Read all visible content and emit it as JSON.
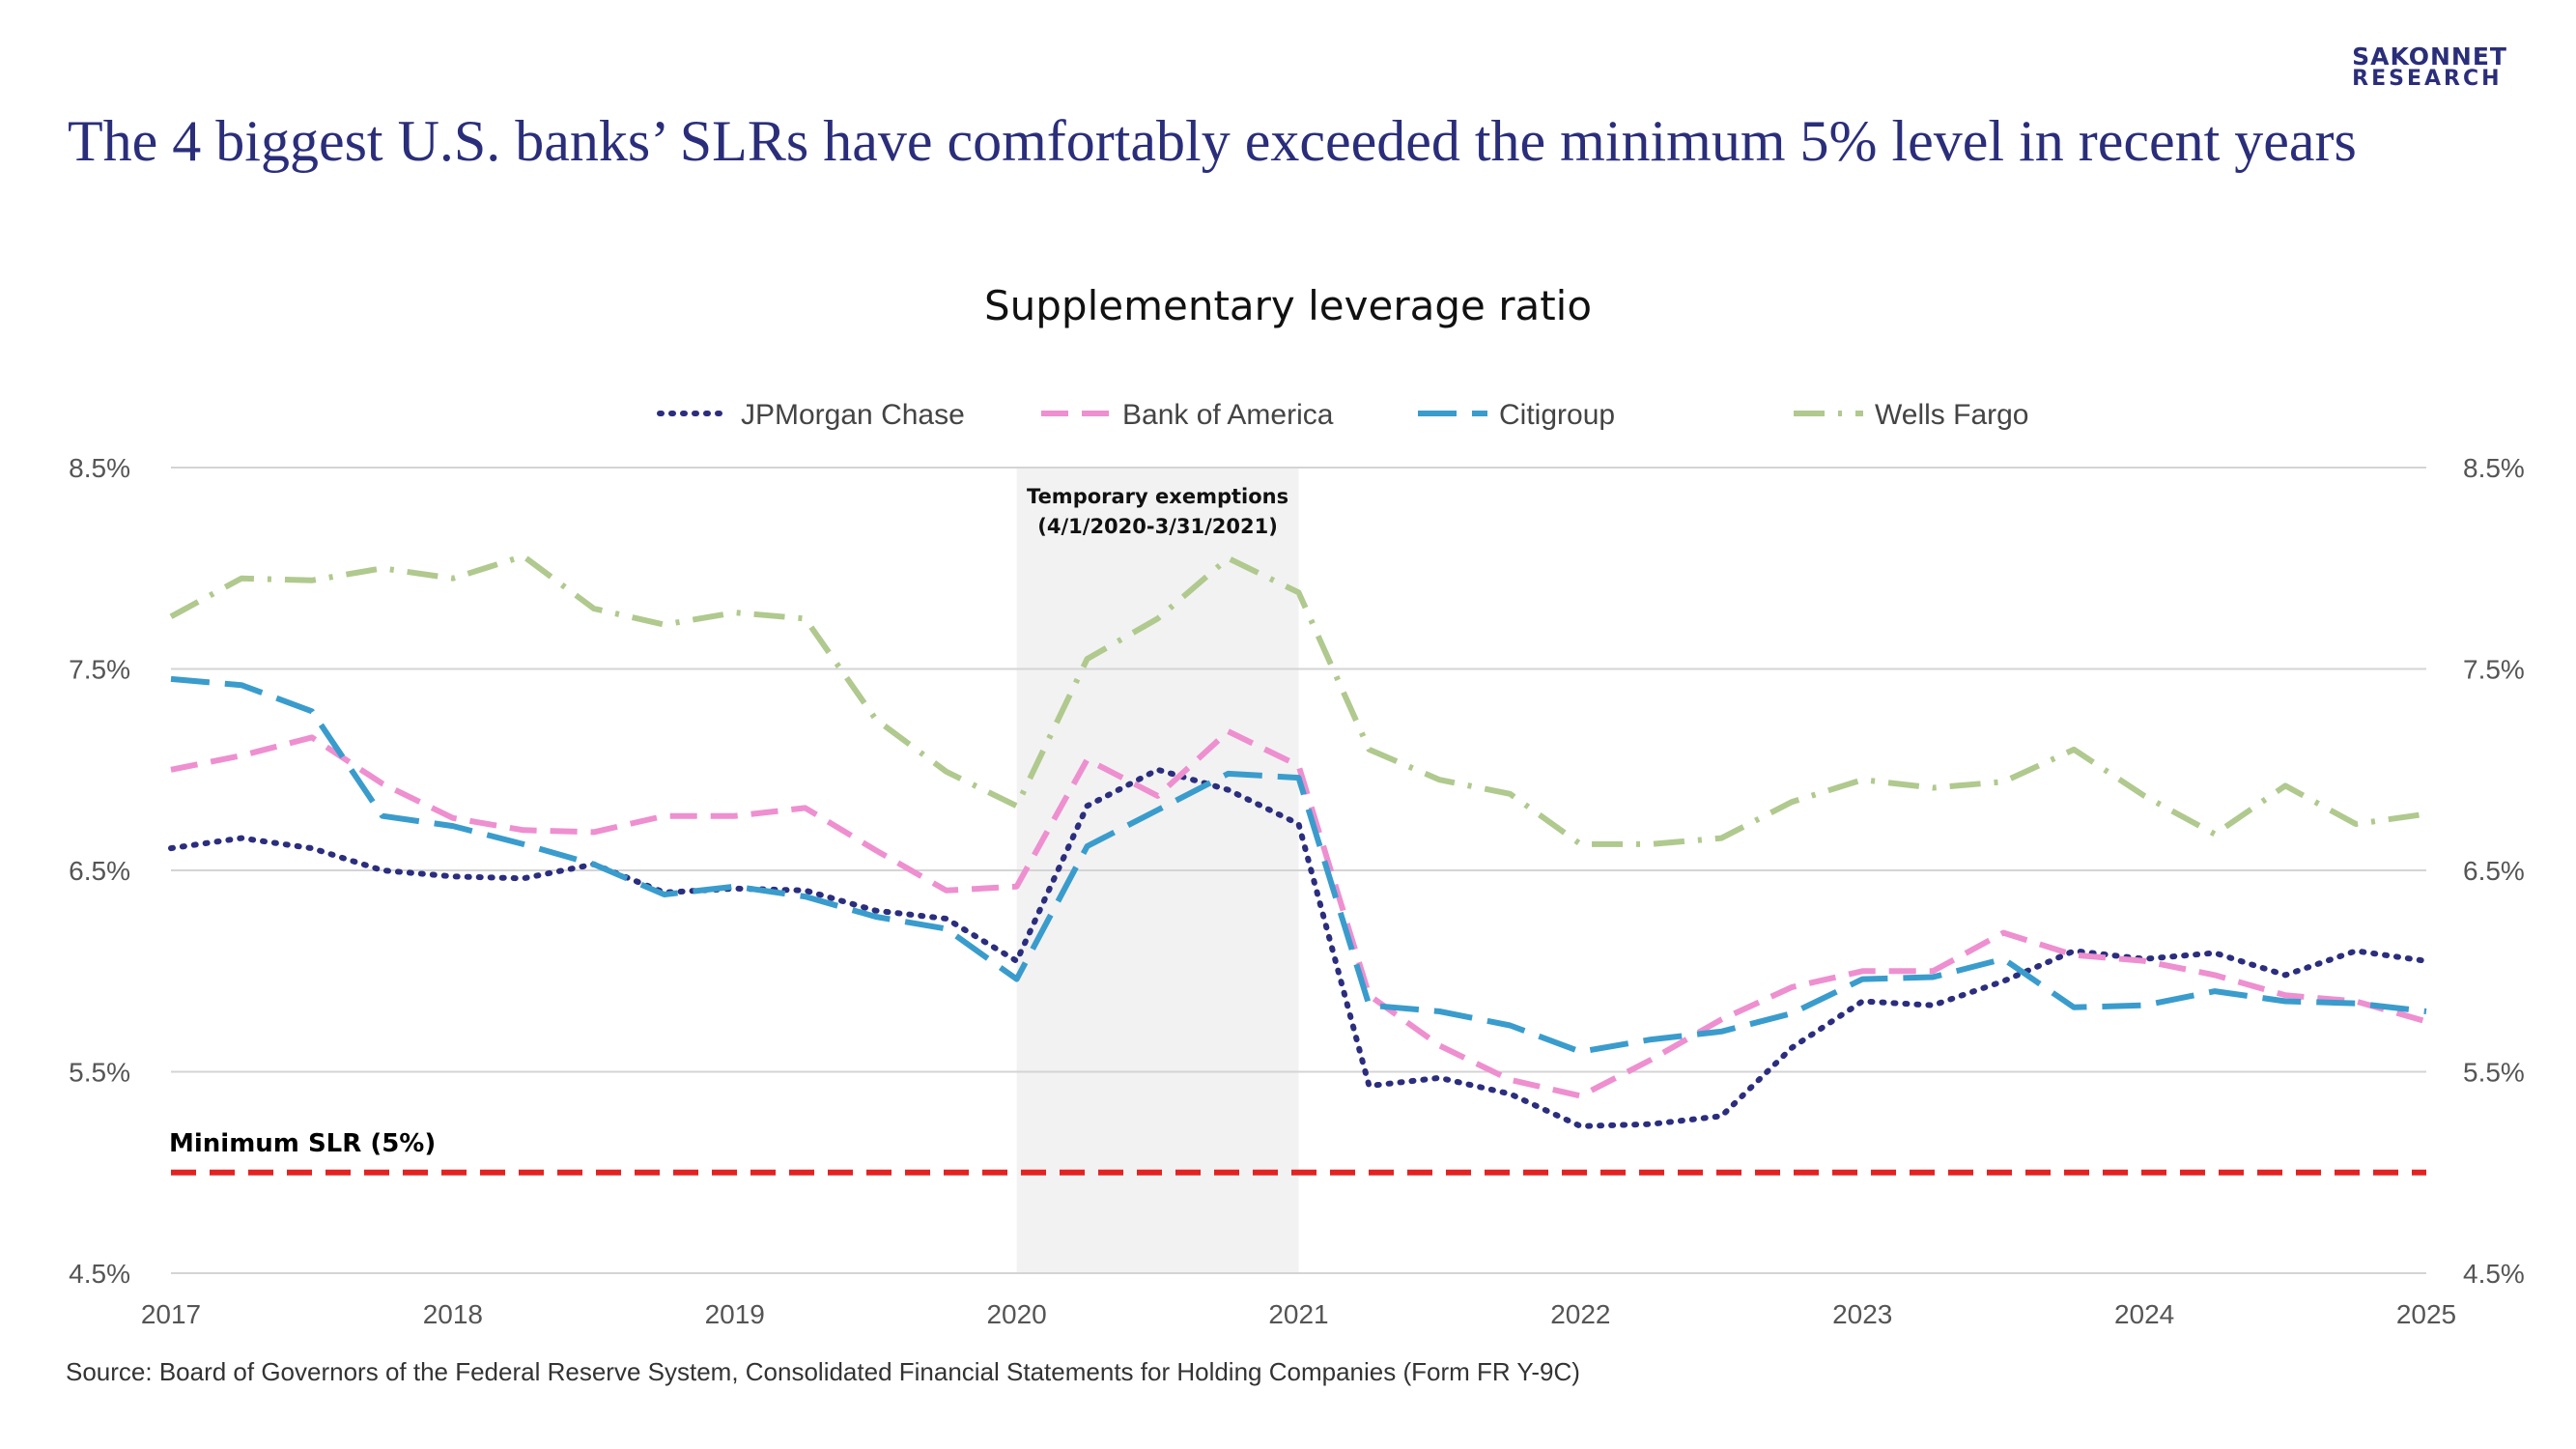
{
  "logo": {
    "line1": "SAKONNET",
    "line2": "RESEARCH"
  },
  "headline": "The 4 biggest U.S. banks’ SLRs have comfortably exceeded the minimum 5% level in recent years",
  "source": "Source: Board of Governors of the Federal Reserve System, Consolidated Financial Statements for Holding Companies (Form FR Y-9C)",
  "chart_data": {
    "type": "line",
    "title": "Supplementary leverage ratio",
    "xlabel": "",
    "ylabel": "",
    "xlim": [
      2017,
      2025
    ],
    "ylim": [
      4.5,
      8.5
    ],
    "y_ticks": [
      {
        "value": 8.5,
        "label": "8.5%"
      },
      {
        "value": 7.5,
        "label": "7.5%"
      },
      {
        "value": 6.5,
        "label": "6.5%"
      },
      {
        "value": 5.5,
        "label": "5.5%"
      },
      {
        "value": 4.5,
        "label": "4.5%"
      }
    ],
    "x_ticks": [
      {
        "value": 2017,
        "label": "2017"
      },
      {
        "value": 2018,
        "label": "2018"
      },
      {
        "value": 2019,
        "label": "2019"
      },
      {
        "value": 2020,
        "label": "2020"
      },
      {
        "value": 2021,
        "label": "2021"
      },
      {
        "value": 2022,
        "label": "2022"
      },
      {
        "value": 2023,
        "label": "2023"
      },
      {
        "value": 2024,
        "label": "2024"
      },
      {
        "value": 2025,
        "label": "2025"
      }
    ],
    "grid": "horizontal",
    "legend_position": "top",
    "x": [
      2017.0,
      2017.25,
      2017.5,
      2017.75,
      2018.0,
      2018.25,
      2018.5,
      2018.75,
      2019.0,
      2019.25,
      2019.5,
      2019.75,
      2020.0,
      2020.25,
      2020.5,
      2020.75,
      2021.0,
      2021.25,
      2021.5,
      2021.75,
      2022.0,
      2022.25,
      2022.5,
      2022.75,
      2023.0,
      2023.25,
      2023.5,
      2023.75,
      2024.0,
      2024.25,
      2024.5,
      2024.75,
      2025.0
    ],
    "series": [
      {
        "name": "JPMorgan Chase",
        "color": "#2b2e7d",
        "dash": "dotted",
        "values": [
          6.61,
          6.66,
          6.61,
          6.5,
          6.47,
          6.46,
          6.53,
          6.39,
          6.41,
          6.4,
          6.3,
          6.26,
          6.05,
          6.82,
          7.0,
          6.9,
          6.73,
          5.43,
          5.47,
          5.39,
          5.23,
          5.24,
          5.28,
          5.62,
          5.85,
          5.83,
          5.95,
          6.1,
          6.06,
          6.09,
          5.98,
          6.1,
          6.05
        ]
      },
      {
        "name": "Bank of America",
        "color": "#ee8fd0",
        "dash": "dashed",
        "values": [
          7.0,
          7.07,
          7.16,
          6.93,
          6.76,
          6.7,
          6.69,
          6.77,
          6.77,
          6.81,
          6.6,
          6.4,
          6.42,
          7.05,
          6.87,
          7.19,
          7.02,
          5.88,
          5.63,
          5.46,
          5.38,
          5.56,
          5.76,
          5.92,
          6.0,
          6.0,
          6.19,
          6.08,
          6.05,
          5.98,
          5.88,
          5.85,
          5.75
        ]
      },
      {
        "name": "Citigroup",
        "color": "#3a9ccc",
        "dash": "longdash",
        "values": [
          7.45,
          7.42,
          7.29,
          6.77,
          6.72,
          6.63,
          6.53,
          6.38,
          6.42,
          6.37,
          6.27,
          6.21,
          5.96,
          6.62,
          6.8,
          6.98,
          6.96,
          5.83,
          5.8,
          5.73,
          5.6,
          5.66,
          5.7,
          5.79,
          5.96,
          5.97,
          6.06,
          5.82,
          5.83,
          5.9,
          5.85,
          5.84,
          5.8
        ]
      },
      {
        "name": "Wells Fargo",
        "color": "#b0c98e",
        "dash": "dashdot",
        "values": [
          7.76,
          7.95,
          7.94,
          8.0,
          7.95,
          8.06,
          7.8,
          7.72,
          7.78,
          7.75,
          7.25,
          6.99,
          6.82,
          7.55,
          7.75,
          8.05,
          7.88,
          7.1,
          6.95,
          6.88,
          6.63,
          6.63,
          6.66,
          6.84,
          6.95,
          6.91,
          6.94,
          7.1,
          6.87,
          6.68,
          6.92,
          6.73,
          6.78
        ]
      }
    ],
    "reference_line": {
      "value": 5.0,
      "label": "Minimum SLR (5%)",
      "color": "#e32222"
    },
    "shaded_region": {
      "from": 2020.0,
      "to": 2021.0,
      "label_line1": "Temporary exemptions",
      "label_line2": "(4/1/2020-3/31/2021)",
      "color": "#f2f2f2"
    }
  }
}
